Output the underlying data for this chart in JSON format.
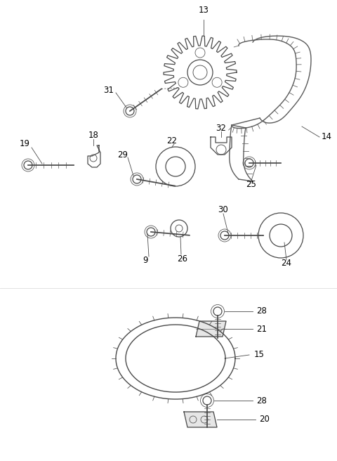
{
  "bg_color": "#ffffff",
  "line_color": "#4a4a4a",
  "figsize": [
    4.8,
    6.56
  ],
  "dpi": 100,
  "label_fs": 8.5
}
